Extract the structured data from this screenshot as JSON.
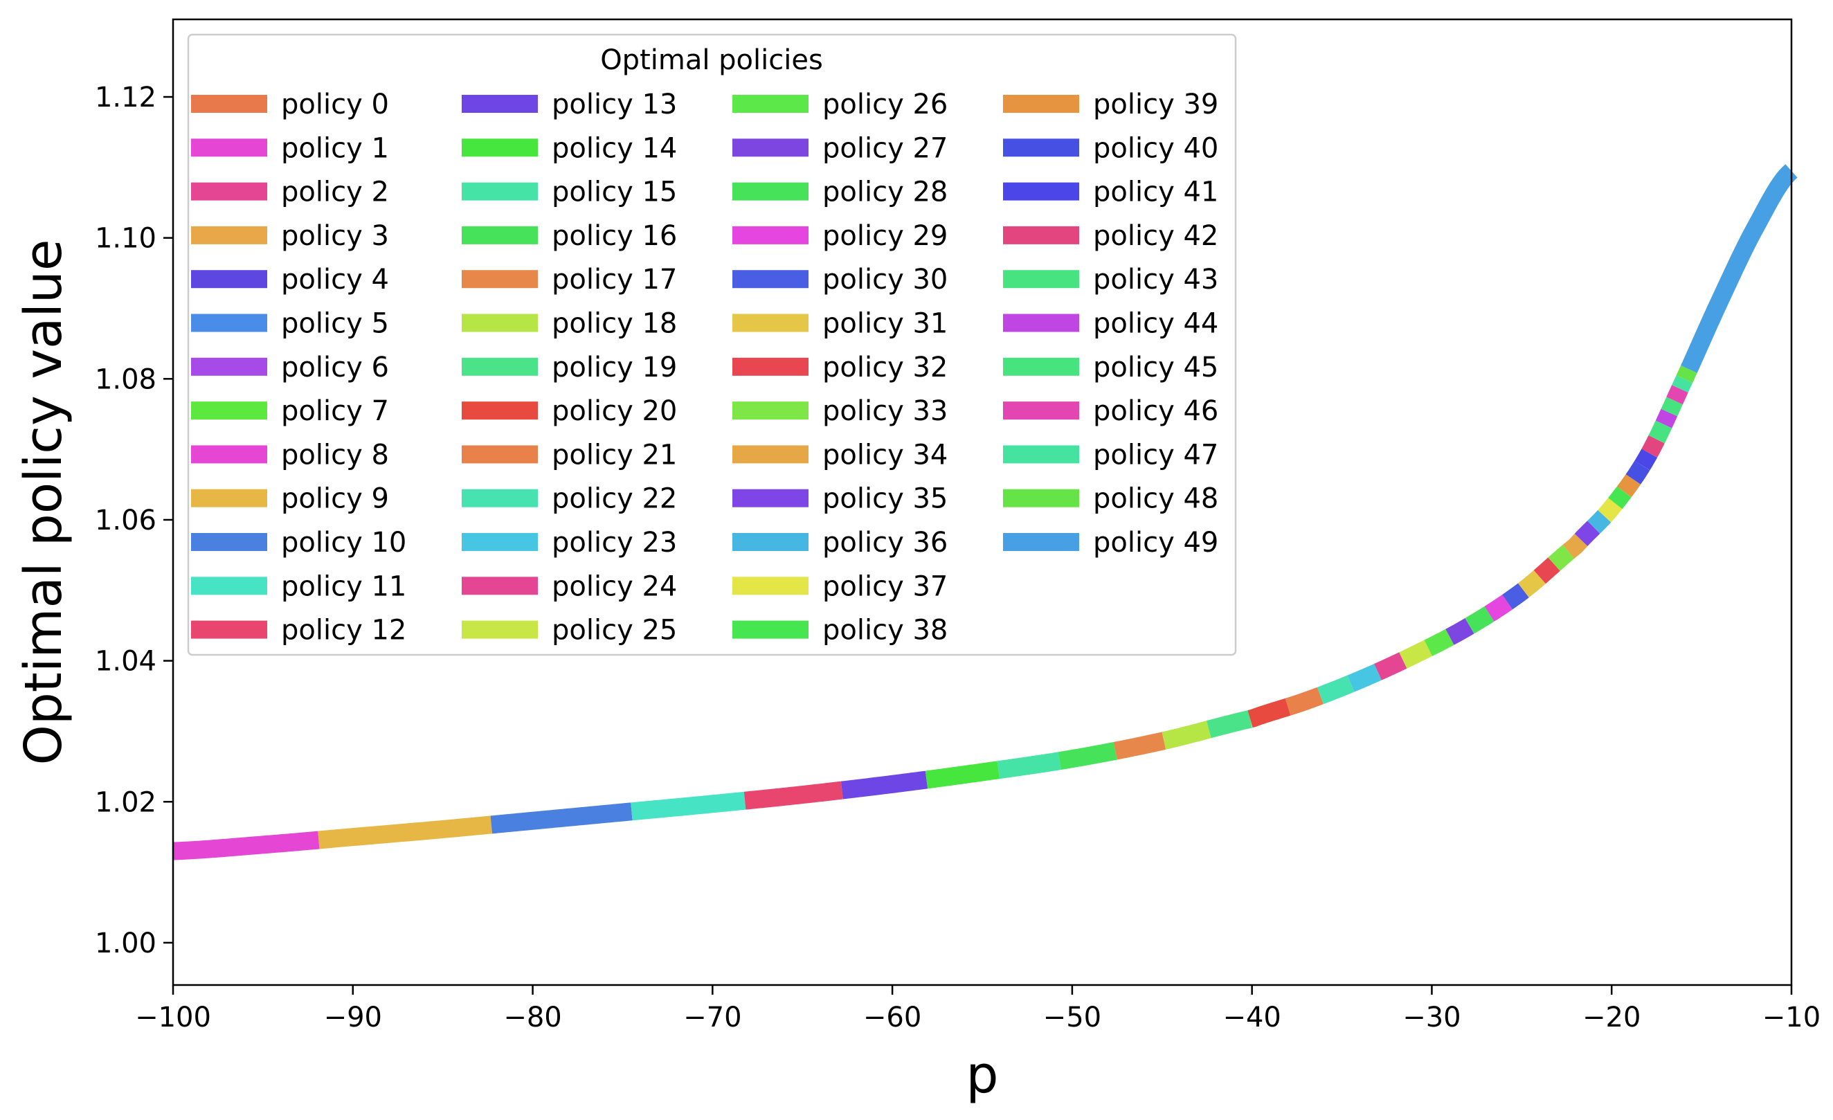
{
  "chart_data": {
    "type": "line",
    "title": "",
    "xlabel": "p",
    "ylabel": "Optimal policy value",
    "xlim": [
      -100,
      -10
    ],
    "ylim": [
      0.994,
      1.131
    ],
    "xticks": [
      -100,
      -90,
      -80,
      -70,
      -60,
      -50,
      -40,
      -30,
      -20,
      -10
    ],
    "xtick_labels": [
      "−100",
      "−90",
      "−80",
      "−70",
      "−60",
      "−50",
      "−40",
      "−30",
      "−20",
      "−10"
    ],
    "yticks": [
      1.0,
      1.02,
      1.04,
      1.06,
      1.08,
      1.1,
      1.12
    ],
    "ytick_labels": [
      "1.00",
      "1.02",
      "1.04",
      "1.06",
      "1.08",
      "1.10",
      "1.12"
    ],
    "grid": false,
    "legend": {
      "title": "Optimal policies",
      "placement": "top-left",
      "columns": 4
    },
    "curve": {
      "x": [
        -100,
        -95,
        -90,
        -85,
        -80,
        -75,
        -70,
        -65,
        -60,
        -55,
        -50,
        -45,
        -40,
        -37,
        -34,
        -31,
        -28,
        -25,
        -22,
        -20,
        -18,
        -16,
        -14,
        -12,
        -10
      ],
      "y": [
        1.013,
        1.0139,
        1.015,
        1.0161,
        1.0173,
        1.0185,
        1.0197,
        1.021,
        1.0225,
        1.0242,
        1.0261,
        1.0286,
        1.0318,
        1.0343,
        1.0373,
        1.0408,
        1.0448,
        1.0498,
        1.0563,
        1.0617,
        1.069,
        1.0797,
        1.091,
        1.1015,
        1.1095
      ]
    },
    "series": [
      {
        "name": "policy 0",
        "color": "#e8794a",
        "x_range": null
      },
      {
        "name": "policy 1",
        "color": "#e546d4",
        "x_range": [
          -100,
          -91.9
        ]
      },
      {
        "name": "policy 2",
        "color": "#e54694",
        "x_range": null
      },
      {
        "name": "policy 3",
        "color": "#e8a84a",
        "x_range": null
      },
      {
        "name": "policy 4",
        "color": "#5e46e0",
        "x_range": null
      },
      {
        "name": "policy 5",
        "color": "#4a8de8",
        "x_range": null
      },
      {
        "name": "policy 6",
        "color": "#a64ae8",
        "x_range": null
      },
      {
        "name": "policy 7",
        "color": "#5de83f",
        "x_range": null
      },
      {
        "name": "policy 8",
        "color": "#e546d4",
        "x_range": null
      },
      {
        "name": "policy 9",
        "color": "#e6b744",
        "x_range": [
          -91.9,
          -82.3
        ]
      },
      {
        "name": "policy 10",
        "color": "#4a81e0",
        "x_range": [
          -82.3,
          -74.5
        ]
      },
      {
        "name": "policy 11",
        "color": "#46e3c4",
        "x_range": [
          -74.5,
          -68.2
        ]
      },
      {
        "name": "policy 12",
        "color": "#e8466e",
        "x_range": [
          -68.2,
          -62.8
        ]
      },
      {
        "name": "policy 13",
        "color": "#6e46e6",
        "x_range": [
          -62.8,
          -58.1
        ]
      },
      {
        "name": "policy 14",
        "color": "#46e63f",
        "x_range": [
          -58.1,
          -54.1
        ]
      },
      {
        "name": "policy 15",
        "color": "#46e3a6",
        "x_range": [
          -54.1,
          -50.7
        ]
      },
      {
        "name": "policy 16",
        "color": "#46e35a",
        "x_range": [
          -50.7,
          -47.6
        ]
      },
      {
        "name": "policy 17",
        "color": "#e8874a",
        "x_range": [
          -47.6,
          -44.9
        ]
      },
      {
        "name": "policy 18",
        "color": "#b6e646",
        "x_range": [
          -44.9,
          -42.4
        ]
      },
      {
        "name": "policy 19",
        "color": "#4ae38a",
        "x_range": [
          -42.4,
          -40.1
        ]
      },
      {
        "name": "policy 20",
        "color": "#e84a3f",
        "x_range": [
          -40.1,
          -38.0
        ]
      },
      {
        "name": "policy 21",
        "color": "#e8824a",
        "x_range": [
          -38.0,
          -36.2
        ]
      },
      {
        "name": "policy 22",
        "color": "#46e3b0",
        "x_range": [
          -36.2,
          -34.5
        ]
      },
      {
        "name": "policy 23",
        "color": "#46c6e3",
        "x_range": [
          -34.5,
          -33.0
        ]
      },
      {
        "name": "policy 24",
        "color": "#e54694",
        "x_range": [
          -33.0,
          -31.6
        ]
      },
      {
        "name": "policy 25",
        "color": "#c8e646",
        "x_range": [
          -31.6,
          -30.2
        ]
      },
      {
        "name": "policy 26",
        "color": "#5de84a",
        "x_range": [
          -30.2,
          -29.0
        ]
      },
      {
        "name": "policy 27",
        "color": "#7e46e0",
        "x_range": [
          -29.0,
          -27.9
        ]
      },
      {
        "name": "policy 28",
        "color": "#46e35a",
        "x_range": [
          -27.9,
          -26.8
        ]
      },
      {
        "name": "policy 29",
        "color": "#e546e0",
        "x_range": [
          -26.8,
          -25.8
        ]
      },
      {
        "name": "policy 30",
        "color": "#4a5ee3",
        "x_range": [
          -25.8,
          -24.9
        ]
      },
      {
        "name": "policy 31",
        "color": "#e6c646",
        "x_range": [
          -24.9,
          -24.0
        ]
      },
      {
        "name": "policy 32",
        "color": "#e84650",
        "x_range": [
          -24.0,
          -23.2
        ]
      },
      {
        "name": "policy 33",
        "color": "#7ee646",
        "x_range": [
          -23.2,
          -22.4
        ]
      },
      {
        "name": "policy 34",
        "color": "#e6a846",
        "x_range": [
          -22.4,
          -21.7
        ]
      },
      {
        "name": "policy 35",
        "color": "#7e46e6",
        "x_range": [
          -21.7,
          -21.0
        ]
      },
      {
        "name": "policy 36",
        "color": "#46b6e3",
        "x_range": [
          -21.0,
          -20.4
        ]
      },
      {
        "name": "policy 37",
        "color": "#e3e646",
        "x_range": [
          -20.4,
          -19.8
        ]
      },
      {
        "name": "policy 38",
        "color": "#46e650",
        "x_range": [
          -19.8,
          -19.3
        ]
      },
      {
        "name": "policy 39",
        "color": "#e6943f",
        "x_range": [
          -19.3,
          -18.8
        ]
      },
      {
        "name": "policy 40",
        "color": "#4650e3",
        "x_range": [
          -18.8,
          -18.3
        ]
      },
      {
        "name": "policy 41",
        "color": "#4a46e8",
        "x_range": [
          -18.3,
          -17.9
        ]
      },
      {
        "name": "policy 42",
        "color": "#e3467e",
        "x_range": [
          -17.9,
          -17.5
        ]
      },
      {
        "name": "policy 43",
        "color": "#46e380",
        "x_range": [
          -17.5,
          -17.1
        ]
      },
      {
        "name": "policy 44",
        "color": "#c046e3",
        "x_range": [
          -17.1,
          -16.8
        ]
      },
      {
        "name": "policy 45",
        "color": "#46e37e",
        "x_range": [
          -16.8,
          -16.5
        ]
      },
      {
        "name": "policy 46",
        "color": "#e346b0",
        "x_range": [
          -16.5,
          -16.2
        ]
      },
      {
        "name": "policy 47",
        "color": "#46e3a0",
        "x_range": [
          -16.2,
          -15.95
        ]
      },
      {
        "name": "policy 48",
        "color": "#66e346",
        "x_range": [
          -15.95,
          -15.7
        ]
      },
      {
        "name": "policy 49",
        "color": "#46a0e3",
        "x_range": [
          -15.7,
          -10
        ]
      }
    ]
  }
}
